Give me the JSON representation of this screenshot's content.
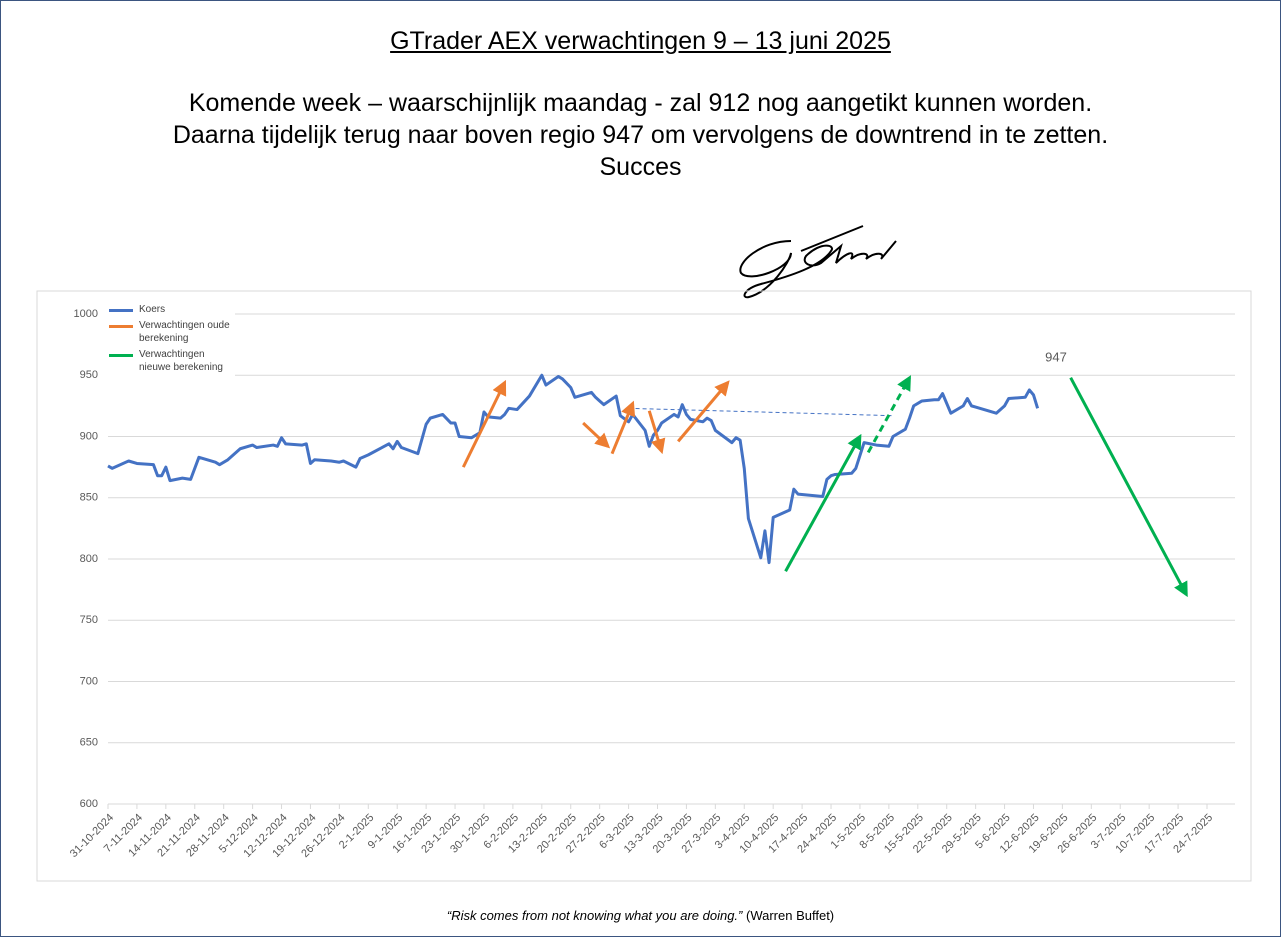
{
  "header": {
    "title": "GTrader AEX verwachtingen 9 – 13 juni 2025",
    "lines": [
      "Komende week – waarschijnlijk maandag - zal 912 nog aangetikt kunnen worden.",
      "Daarna tijdelijk terug naar boven regio 947 om vervolgens de downtrend in te zetten.",
      "Succes"
    ]
  },
  "footer": {
    "quote": "“Risk comes from not knowing what you are doing.”",
    "author": "(Warren Buffet)"
  },
  "chart_data": {
    "type": "line",
    "xlim": [
      "31-10-2024",
      "24-7-2025"
    ],
    "xticks": [
      "31-10-2024",
      "7-11-2024",
      "14-11-2024",
      "21-11-2024",
      "28-11-2024",
      "5-12-2024",
      "12-12-2024",
      "19-12-2024",
      "26-12-2024",
      "2-1-2025",
      "9-1-2025",
      "16-1-2025",
      "23-1-2025",
      "30-1-2025",
      "6-2-2025",
      "13-2-2025",
      "20-2-2025",
      "27-2-2025",
      "6-3-2025",
      "13-3-2025",
      "20-3-2025",
      "27-3-2025",
      "3-4-2025",
      "10-4-2025",
      "17-4-2025",
      "24-4-2025",
      "1-5-2025",
      "8-5-2025",
      "15-5-2025",
      "22-5-2025",
      "29-5-2025",
      "5-6-2025",
      "12-6-2025",
      "19-6-2025",
      "26-6-2025",
      "3-7-2025",
      "10-7-2025",
      "17-7-2025",
      "24-7-2025"
    ],
    "ylim": [
      600,
      1000
    ],
    "yticks": [
      600,
      650,
      700,
      750,
      800,
      850,
      900,
      950,
      1000
    ],
    "grid": true,
    "legend": "top-left",
    "series": [
      {
        "name": "Koers",
        "color": "#4472c4",
        "x": [
          "31-10-2024",
          "1-11-2024",
          "5-11-2024",
          "7-11-2024",
          "11-11-2024",
          "12-11-2024",
          "13-11-2024",
          "14-11-2024",
          "15-11-2024",
          "18-11-2024",
          "20-11-2024",
          "22-11-2024",
          "26-11-2024",
          "27-11-2024",
          "29-11-2024",
          "2-12-2024",
          "5-12-2024",
          "6-12-2024",
          "10-12-2024",
          "11-12-2024",
          "12-12-2024",
          "13-12-2024",
          "17-12-2024",
          "18-12-2024",
          "19-12-2024",
          "20-12-2024",
          "24-12-2024",
          "26-12-2024",
          "27-12-2024",
          "30-12-2024",
          "31-12-2024",
          "2-1-2025",
          "7-1-2025",
          "8-1-2025",
          "9-1-2025",
          "10-1-2025",
          "14-1-2025",
          "16-1-2025",
          "17-1-2025",
          "20-1-2025",
          "22-1-2025",
          "23-1-2025",
          "24-1-2025",
          "27-1-2025",
          "29-1-2025",
          "30-1-2025",
          "31-1-2025",
          "3-2-2025",
          "4-2-2025",
          "5-2-2025",
          "7-2-2025",
          "10-2-2025",
          "13-2-2025",
          "14-2-2025",
          "17-2-2025",
          "18-2-2025",
          "20-2-2025",
          "21-2-2025",
          "25-2-2025",
          "26-2-2025",
          "27-2-2025",
          "28-2-2025",
          "3-3-2025",
          "4-3-2025",
          "6-3-2025",
          "7-3-2025",
          "10-3-2025",
          "11-3-2025",
          "12-3-2025",
          "13-3-2025",
          "14-3-2025",
          "17-3-2025",
          "18-3-2025",
          "19-3-2025",
          "20-3-2025",
          "21-3-2025",
          "24-3-2025",
          "25-3-2025",
          "26-3-2025",
          "27-3-2025",
          "31-3-2025",
          "1-4-2025",
          "2-4-2025",
          "3-4-2025",
          "4-4-2025",
          "7-4-2025",
          "8-4-2025",
          "9-4-2025",
          "10-4-2025",
          "14-4-2025",
          "15-4-2025",
          "16-4-2025",
          "22-4-2025",
          "23-4-2025",
          "24-4-2025",
          "25-4-2025",
          "29-4-2025",
          "30-4-2025",
          "2-5-2025",
          "5-5-2025",
          "8-5-2025",
          "9-5-2025",
          "12-5-2025",
          "13-5-2025",
          "14-5-2025",
          "16-5-2025",
          "19-5-2025",
          "20-5-2025",
          "21-5-2025",
          "23-5-2025",
          "26-5-2025",
          "27-5-2025",
          "28-5-2025",
          "29-5-2025",
          "3-6-2025",
          "5-6-2025",
          "6-6-2025",
          "10-6-2025",
          "11-6-2025",
          "12-6-2025",
          "13-6-2025"
        ],
        "values": [
          876,
          874,
          880,
          878,
          877,
          868,
          868,
          875,
          864,
          866,
          865,
          883,
          879,
          877,
          881,
          890,
          893,
          891,
          893,
          892,
          899,
          894,
          893,
          894,
          878,
          881,
          880,
          879,
          880,
          875,
          882,
          885,
          894,
          890,
          896,
          891,
          886,
          910,
          915,
          918,
          911,
          911,
          900,
          899,
          903,
          920,
          916,
          915,
          918,
          923,
          922,
          933,
          950,
          942,
          949,
          947,
          940,
          932,
          936,
          932,
          929,
          926,
          933,
          917,
          912,
          918,
          905,
          892,
          901,
          905,
          911,
          918,
          916,
          926,
          918,
          914,
          912,
          915,
          913,
          905,
          895,
          899,
          897,
          874,
          833,
          801,
          823,
          797,
          834,
          840,
          857,
          853,
          851,
          865,
          868,
          869,
          870,
          874,
          895,
          893,
          892,
          900,
          906,
          915,
          925,
          929,
          930,
          930,
          935,
          919,
          925,
          931,
          925,
          924,
          919,
          925,
          931,
          932,
          938,
          934,
          923
        ]
      },
      {
        "name": "Verwachtingen oude berekening",
        "color": "#ed7d31",
        "x": [
          "25-1-2025",
          "4-2-2025",
          null,
          "23-2-2025",
          "1-3-2025",
          null,
          "2-3-2025",
          "7-3-2025",
          null,
          "11-3-2025",
          "14-3-2025",
          null,
          "18-3-2025",
          "30-3-2025"
        ],
        "values": [
          875,
          944,
          null,
          911,
          892,
          null,
          886,
          927,
          null,
          921,
          888,
          null,
          896,
          944
        ],
        "dashed": [
          false,
          false,
          false,
          false,
          false
        ]
      },
      {
        "name": "Verwachtingen nieuwe berekening",
        "color": "#00b050",
        "x": [
          "13-4-2025",
          "1-5-2025",
          null,
          "3-5-2025",
          "13-5-2025",
          null,
          "21-6-2025",
          "19-7-2025"
        ],
        "values": [
          790,
          900,
          null,
          887,
          948,
          null,
          948,
          771
        ],
        "dashed": [
          false,
          true,
          false
        ]
      }
    ],
    "trendline": {
      "color": "#4472c4",
      "x": [
        "6-3-2025",
        "9-5-2025"
      ],
      "values": [
        923,
        917
      ]
    },
    "annotations": [
      "947"
    ]
  }
}
